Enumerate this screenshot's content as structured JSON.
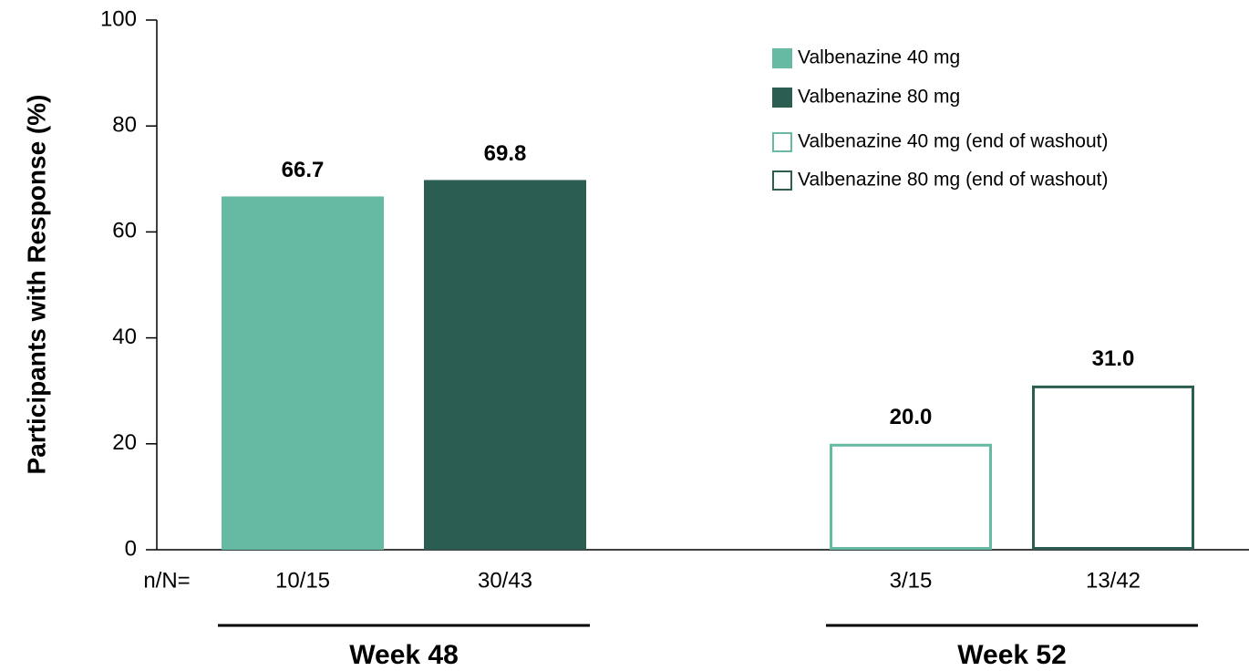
{
  "chart_data": {
    "type": "bar",
    "ylabel": "Participants with Response (%)",
    "category_label": "n/N=",
    "groups": [
      {
        "label": "Week 48",
        "categories": [
          "10/15",
          "30/43"
        ]
      },
      {
        "label": "Week 52",
        "categories": [
          "3/15",
          "13/42"
        ]
      }
    ],
    "series": [
      {
        "name": "Valbenazine 40 mg",
        "color": "#66b9a3",
        "fill": "solid",
        "values": [
          66.7,
          null,
          null,
          null
        ],
        "value_labels": [
          "66.7",
          null,
          null,
          null
        ]
      },
      {
        "name": "Valbenazine 80 mg",
        "color": "#2b5e51",
        "fill": "solid",
        "values": [
          null,
          69.8,
          null,
          null
        ],
        "value_labels": [
          null,
          "69.8",
          null,
          null
        ]
      },
      {
        "name": "Valbenazine 40 mg (end of washout)",
        "color": "#66b9a3",
        "fill": "outline",
        "values": [
          null,
          null,
          20.0,
          null
        ],
        "value_labels": [
          null,
          null,
          "20.0",
          null
        ]
      },
      {
        "name": "Valbenazine 80 mg (end of washout)",
        "color": "#2b5e51",
        "fill": "outline",
        "values": [
          null,
          null,
          null,
          31.0
        ],
        "value_labels": [
          null,
          null,
          null,
          "31.0"
        ]
      }
    ],
    "ylim": [
      0,
      100
    ],
    "yticks": [
      0,
      20,
      40,
      60,
      80,
      100
    ],
    "legend": "upper right"
  }
}
